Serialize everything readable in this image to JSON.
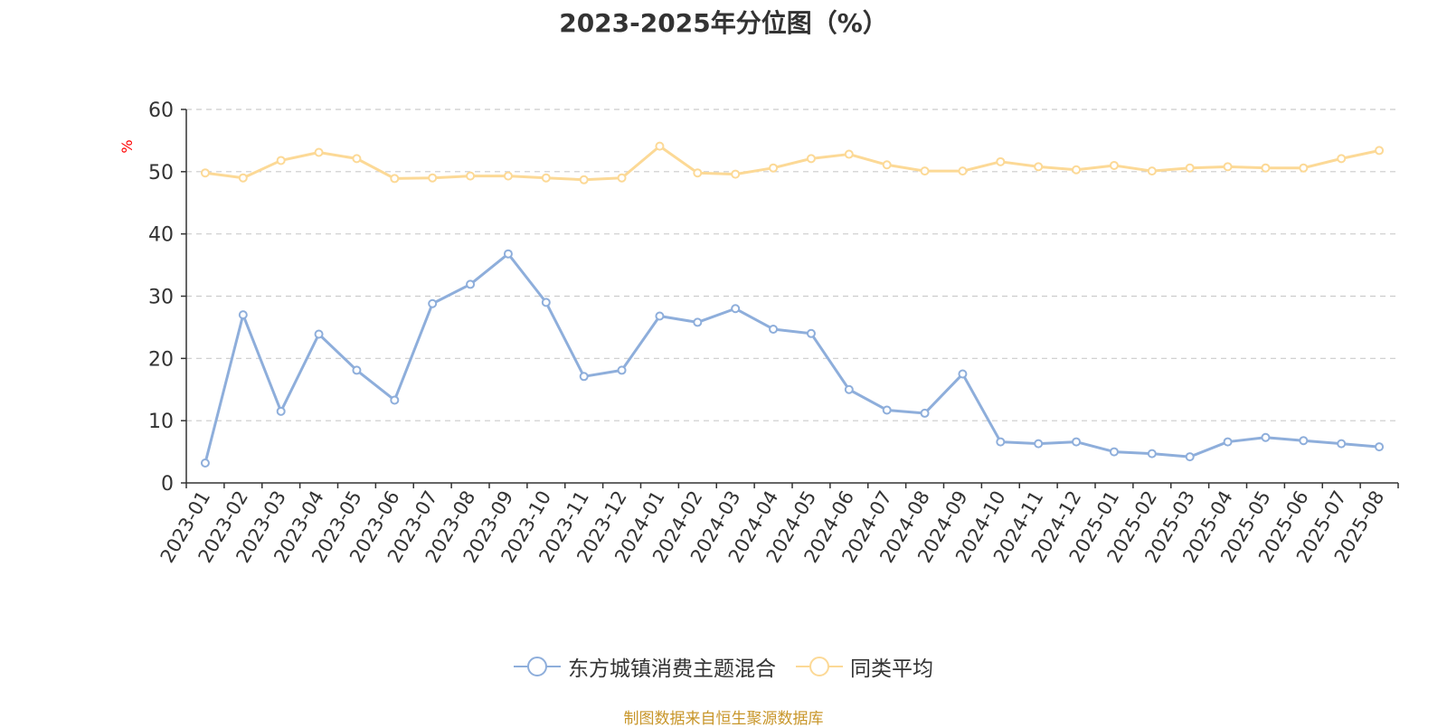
{
  "title": "2023-2025年分位图（%）",
  "source": "制图数据来自恒生聚源数据库",
  "chart_data": {
    "type": "line",
    "ylabel": "%",
    "ylim": [
      0,
      60
    ],
    "yticks": [
      0,
      10,
      20,
      30,
      40,
      50,
      60
    ],
    "grid": true,
    "legend_position": "bottom",
    "categories": [
      "2023-01",
      "2023-02",
      "2023-03",
      "2023-04",
      "2023-05",
      "2023-06",
      "2023-07",
      "2023-08",
      "2023-09",
      "2023-10",
      "2023-11",
      "2023-12",
      "2024-01",
      "2024-02",
      "2024-03",
      "2024-04",
      "2024-05",
      "2024-06",
      "2024-07",
      "2024-08",
      "2024-09",
      "2024-10",
      "2024-11",
      "2024-12",
      "2025-01",
      "2025-02",
      "2025-03",
      "2025-04",
      "2025-05",
      "2025-06",
      "2025-07",
      "2025-08"
    ],
    "series": [
      {
        "name": "东方城镇消费主题混合",
        "color": "#8eaedb",
        "values": [
          3.2,
          27.0,
          11.5,
          23.9,
          18.1,
          13.3,
          28.8,
          31.9,
          36.8,
          29.0,
          17.1,
          18.1,
          26.8,
          25.8,
          28.0,
          24.7,
          24.0,
          15.0,
          11.7,
          11.2,
          17.5,
          6.6,
          6.3,
          6.6,
          5.0,
          4.7,
          4.2,
          6.6,
          7.3,
          6.8,
          6.3,
          5.8
        ]
      },
      {
        "name": "同类平均",
        "color": "#fcd996",
        "values": [
          49.8,
          49.0,
          51.8,
          53.1,
          52.1,
          48.9,
          49.0,
          49.3,
          49.3,
          49.0,
          48.7,
          49.0,
          54.1,
          49.8,
          49.6,
          50.6,
          52.1,
          52.8,
          51.1,
          50.1,
          50.1,
          51.6,
          50.8,
          50.3,
          51.0,
          50.1,
          50.6,
          50.8,
          50.6,
          50.6,
          52.1,
          53.4
        ]
      }
    ]
  }
}
